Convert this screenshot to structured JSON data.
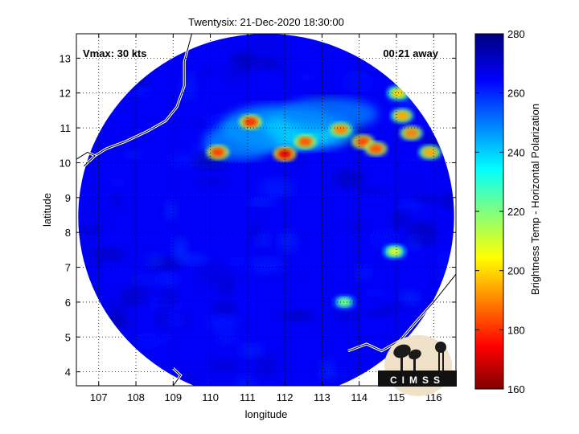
{
  "chart_data": {
    "type": "heatmap",
    "title": "Twentysix: 21-Dec-2020 18:30:00",
    "xlabel": "longitude",
    "ylabel": "latitude",
    "xlim": [
      106.4,
      116.6
    ],
    "ylim": [
      3.6,
      13.7
    ],
    "xticks": [
      107,
      108,
      109,
      110,
      111,
      112,
      113,
      114,
      115,
      116
    ],
    "yticks": [
      4,
      5,
      6,
      7,
      8,
      9,
      10,
      11,
      12,
      13
    ],
    "grid": true,
    "annotations": {
      "vmax": "Vmax: 30 kts",
      "time_offset": "00:21 away"
    },
    "colorbar": {
      "label": "Brightness Temp - Horizontal Polarization",
      "range": [
        160,
        280
      ],
      "ticks": [
        160,
        180,
        200,
        220,
        240,
        260,
        280
      ]
    },
    "swath": {
      "center_lon": 111.5,
      "center_lat": 8.45,
      "radius_lon": 5.05,
      "radius_lat": 5.25,
      "background_value": 266
    },
    "cold_features": [
      {
        "lon": 111.08,
        "lat": 11.17,
        "value": 180
      },
      {
        "lon": 110.2,
        "lat": 10.3,
        "value": 182
      },
      {
        "lon": 112.0,
        "lat": 10.25,
        "value": 172
      },
      {
        "lon": 112.55,
        "lat": 10.6,
        "value": 185
      },
      {
        "lon": 113.5,
        "lat": 10.95,
        "value": 190
      },
      {
        "lon": 114.1,
        "lat": 10.6,
        "value": 183
      },
      {
        "lon": 114.45,
        "lat": 10.4,
        "value": 185
      },
      {
        "lon": 115.05,
        "lat": 12.0,
        "value": 200
      },
      {
        "lon": 115.15,
        "lat": 11.35,
        "value": 195
      },
      {
        "lon": 115.4,
        "lat": 10.85,
        "value": 190
      },
      {
        "lon": 115.9,
        "lat": 10.3,
        "value": 195
      },
      {
        "lon": 114.95,
        "lat": 7.45,
        "value": 210
      },
      {
        "lon": 113.6,
        "lat": 6.0,
        "value": 222
      }
    ]
  },
  "logo": {
    "text": "CIMSS"
  },
  "colors": {
    "coastline": "#ffffff",
    "frame": "#000000"
  }
}
